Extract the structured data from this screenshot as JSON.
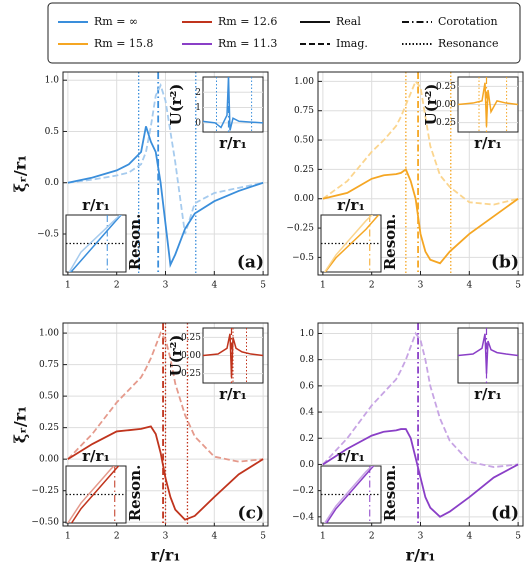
{
  "legend": [
    {
      "label": "Rm = ∞",
      "color": "#3a8edb",
      "dash": "solid"
    },
    {
      "label": "Rm = 15.8",
      "color": "#f5a623",
      "dash": "solid"
    },
    {
      "label": "Rm = 12.6",
      "color": "#c0341d",
      "dash": "solid"
    },
    {
      "label": "Rm = 11.3",
      "color": "#8a3fc7",
      "dash": "solid"
    },
    {
      "label": "Real",
      "color": "#111111",
      "dash": "solid"
    },
    {
      "label": "Imag.",
      "color": "#111111",
      "dash": "dashed"
    },
    {
      "label": "Corotation",
      "color": "#111111",
      "dash": "dashdot"
    },
    {
      "label": "Resonance",
      "color": "#111111",
      "dash": "dotted"
    }
  ],
  "chart_data": [
    {
      "type": "line",
      "panel_label": "(a)",
      "ylabel": "ξᵣ/r₁",
      "annotation": "Reson.",
      "x": [
        1,
        1.5,
        2,
        2.25,
        2.5,
        2.6,
        2.7,
        2.8,
        2.9,
        3.0,
        3.1,
        3.2,
        3.4,
        3.6,
        4,
        4.5,
        5
      ],
      "xlim": [
        0.9,
        5.1
      ],
      "xticks": [
        1,
        2,
        3,
        4,
        5
      ],
      "ylim": [
        -0.9,
        1.08
      ],
      "yticks": [
        {
          "value": -0.5,
          "label": "−0.5"
        },
        {
          "value": 0,
          "label": "0.0"
        },
        0.5,
        {
          "value": 1.0,
          "label": "1.0"
        }
      ],
      "grid": true,
      "corotation": 2.85,
      "resonances": [
        2.45,
        3.62
      ],
      "series": [
        {
          "color": "#3a8edb",
          "dash": "solid",
          "values": [
            0,
            0.05,
            0.12,
            0.18,
            0.3,
            0.55,
            0.4,
            0.3,
            0.0,
            -0.4,
            -0.8,
            -0.7,
            -0.45,
            -0.3,
            -0.18,
            -0.08,
            0
          ]
        },
        {
          "color": "#a6cbee",
          "dash": "dashed",
          "values": [
            0,
            0.03,
            0.07,
            0.1,
            0.18,
            0.3,
            0.55,
            0.85,
            0.95,
            0.8,
            0.5,
            0.2,
            -0.5,
            -0.2,
            -0.1,
            -0.05,
            0
          ]
        }
      ],
      "inset_potential": {
        "ylabel": "U(r²)",
        "xlabel": "r/r₁",
        "xlim": [
          2,
          4
        ],
        "ylim": [
          -0.6,
          3
        ],
        "yticks": [
          0,
          1,
          2
        ],
        "x": [
          2,
          2.4,
          2.6,
          2.8,
          2.85,
          2.9,
          3.0,
          3.2,
          3.6,
          4
        ],
        "values": [
          0.1,
          0,
          -0.3,
          0.5,
          3,
          -0.5,
          0.3,
          0.1,
          0.05,
          0
        ]
      },
      "inset_zoom": {
        "title": "r/r₁",
        "xlim": [
          2.3,
          3.1
        ],
        "ylim": [
          -1,
          1
        ],
        "hline": 0,
        "x": [
          2.3,
          2.5,
          2.7,
          2.9,
          3.1
        ],
        "series": [
          {
            "values": [
              -1.2,
              -0.6,
              0,
              0.6,
              1.2
            ]
          },
          {
            "values": [
              -1.2,
              -0.3,
              0.2,
              0.7,
              1.2
            ]
          }
        ]
      }
    },
    {
      "type": "line",
      "panel_label": "(b)",
      "annotation": "Reson.",
      "x": [
        1,
        1.5,
        2,
        2.25,
        2.5,
        2.6,
        2.7,
        2.8,
        2.9,
        3.0,
        3.1,
        3.2,
        3.4,
        3.6,
        4,
        4.5,
        5
      ],
      "xlim": [
        0.9,
        5.1
      ],
      "xticks": [
        1,
        2,
        3,
        4,
        5
      ],
      "ylim": [
        -0.65,
        1.08
      ],
      "yticks": [
        {
          "value": -0.5,
          "label": "−0.5"
        },
        {
          "value": -0.25,
          "label": "−0.25"
        },
        {
          "value": 0,
          "label": "0.00"
        },
        0.25,
        {
          "value": 0.5,
          "label": "0.50"
        },
        0.75,
        {
          "value": 1.0,
          "label": "1.00"
        }
      ],
      "grid": true,
      "corotation": 2.95,
      "resonances": [
        2.7,
        3.62
      ],
      "series": [
        {
          "color": "#f5a623",
          "dash": "solid",
          "values": [
            0,
            0.05,
            0.17,
            0.2,
            0.21,
            0.22,
            0.25,
            0.15,
            0.0,
            -0.3,
            -0.45,
            -0.52,
            -0.55,
            -0.45,
            -0.3,
            -0.15,
            0
          ]
        },
        {
          "color": "#fbd58e",
          "dash": "dashed",
          "values": [
            0,
            0.15,
            0.4,
            0.5,
            0.62,
            0.7,
            0.8,
            0.9,
            1.0,
            0.95,
            0.7,
            0.45,
            0.2,
            0.1,
            -0.03,
            -0.05,
            0
          ]
        }
      ],
      "inset_potential": {
        "ylabel": "U(r²)",
        "xlabel": "r/r₁",
        "xlim": [
          2,
          4
        ],
        "ylim": [
          -0.38,
          0.38
        ],
        "yticks": [
          {
            "value": -0.25,
            "label": "−0.25"
          },
          {
            "value": 0,
            "label": "0.00"
          },
          0.25
        ],
        "x": [
          2,
          2.5,
          2.8,
          2.9,
          2.95,
          3.0,
          3.1,
          3.3,
          3.6,
          4
        ],
        "values": [
          0,
          0.02,
          0.05,
          0.3,
          -0.3,
          0.2,
          -0.1,
          0.05,
          0.02,
          0
        ]
      },
      "inset_zoom": {
        "title": "r/r₁",
        "xlim": [
          2.3,
          3.1
        ],
        "ylim": [
          -1,
          1
        ],
        "hline": 0,
        "x": [
          2.3,
          2.5,
          2.7,
          2.9,
          3.1
        ],
        "series": [
          {
            "values": [
              -1.2,
              -0.5,
              0,
              0.5,
              1.1
            ]
          },
          {
            "values": [
              -1.2,
              -0.4,
              0.2,
              0.8,
              1.3
            ]
          }
        ]
      }
    },
    {
      "type": "line",
      "panel_label": "(c)",
      "ylabel": "ξᵣ/r₁",
      "xlabel": "r/r₁",
      "annotation": "Reson.",
      "x": [
        1,
        1.5,
        2,
        2.25,
        2.5,
        2.6,
        2.7,
        2.8,
        2.9,
        3.0,
        3.1,
        3.2,
        3.4,
        3.6,
        4,
        4.5,
        5
      ],
      "xlim": [
        0.9,
        5.1
      ],
      "xticks": [
        1,
        2,
        3,
        4,
        5
      ],
      "ylim": [
        -0.53,
        1.08
      ],
      "yticks": [
        {
          "value": -0.5,
          "label": "−0.50"
        },
        {
          "value": -0.25,
          "label": "−0.25"
        },
        {
          "value": 0,
          "label": "0.00"
        },
        0.25,
        {
          "value": 0.5,
          "label": "0.50"
        },
        0.75,
        {
          "value": 1.0,
          "label": "1.00"
        }
      ],
      "grid": true,
      "corotation": 2.95,
      "resonances": [
        3.0,
        3.45
      ],
      "series": [
        {
          "color": "#c0341d",
          "dash": "solid",
          "values": [
            0,
            0.12,
            0.22,
            0.23,
            0.24,
            0.25,
            0.26,
            0.2,
            0.05,
            -0.15,
            -0.3,
            -0.4,
            -0.48,
            -0.45,
            -0.3,
            -0.12,
            0
          ]
        },
        {
          "color": "#e59a8c",
          "dash": "dashed",
          "values": [
            0,
            0.2,
            0.45,
            0.55,
            0.65,
            0.72,
            0.8,
            0.9,
            1.0,
            0.95,
            0.8,
            0.6,
            0.35,
            0.18,
            0.02,
            -0.02,
            0
          ]
        }
      ],
      "inset_potential": {
        "ylabel": "U(r²)",
        "xlabel": "r/r₁",
        "xlim": [
          2,
          4
        ],
        "ylim": [
          -0.38,
          0.38
        ],
        "yticks": [
          {
            "value": -0.25,
            "label": "−0.25"
          },
          {
            "value": 0,
            "label": "0.00"
          },
          0.25
        ],
        "x": [
          2,
          2.5,
          2.8,
          2.9,
          2.95,
          3.0,
          3.1,
          3.3,
          3.6,
          4
        ],
        "values": [
          0,
          0.02,
          0.1,
          0.3,
          -0.3,
          0.25,
          0.1,
          0.05,
          0.02,
          0
        ]
      },
      "inset_zoom": {
        "title": "r/r₁",
        "xlim": [
          2.3,
          3.1
        ],
        "ylim": [
          -1,
          1
        ],
        "hline": 0,
        "x": [
          2.3,
          2.5,
          2.7,
          2.9,
          3.1
        ],
        "series": [
          {
            "values": [
              -1.3,
              -0.5,
              0.1,
              0.7,
              1.3
            ]
          },
          {
            "values": [
              -1.1,
              -0.3,
              0.3,
              0.9,
              1.4
            ]
          }
        ]
      }
    },
    {
      "type": "line",
      "panel_label": "(d)",
      "xlabel": "r/r₁",
      "annotation": "Reson.",
      "x": [
        1,
        1.5,
        2,
        2.25,
        2.5,
        2.6,
        2.7,
        2.8,
        2.9,
        3.0,
        3.1,
        3.2,
        3.4,
        3.6,
        4,
        4.5,
        5
      ],
      "xlim": [
        0.9,
        5.1
      ],
      "xticks": [
        1,
        2,
        3,
        4,
        5
      ],
      "ylim": [
        -0.47,
        1.08
      ],
      "yticks": [
        {
          "value": -0.4,
          "label": "−0.4"
        },
        {
          "value": -0.2,
          "label": "−0.2"
        },
        {
          "value": 0,
          "label": "0.0"
        },
        0.2,
        0.4,
        0.6,
        0.8,
        {
          "value": 1.0,
          "label": "1.0"
        }
      ],
      "grid": true,
      "corotation": 2.95,
      "resonances": [],
      "series": [
        {
          "color": "#8a3fc7",
          "dash": "solid",
          "values": [
            0,
            0.12,
            0.22,
            0.25,
            0.26,
            0.27,
            0.27,
            0.2,
            0.05,
            -0.1,
            -0.25,
            -0.33,
            -0.4,
            -0.36,
            -0.25,
            -0.1,
            0
          ]
        },
        {
          "color": "#c7a4e4",
          "dash": "dashed",
          "values": [
            0,
            0.2,
            0.45,
            0.55,
            0.65,
            0.72,
            0.8,
            0.9,
            1.0,
            0.95,
            0.8,
            0.6,
            0.35,
            0.18,
            0.02,
            -0.02,
            0
          ]
        }
      ],
      "inset_potential": {
        "xlabel": "r/r₁",
        "xlim": [
          2,
          4
        ],
        "ylim": [
          -0.38,
          0.38
        ],
        "x": [
          2,
          2.5,
          2.8,
          2.9,
          2.95,
          3.0,
          3.1,
          3.3,
          3.6,
          4
        ],
        "values": [
          0,
          0.02,
          0.1,
          0.3,
          -0.25,
          0.2,
          0.08,
          0.04,
          0.02,
          0
        ]
      },
      "inset_zoom": {
        "title": "r/r₁",
        "xlim": [
          2.3,
          3.1
        ],
        "ylim": [
          -1,
          1
        ],
        "hline": 0,
        "x": [
          2.3,
          2.5,
          2.7,
          2.9,
          3.1
        ],
        "series": [
          {
            "values": [
              -1.3,
              -0.5,
              0.1,
              0.7,
              1.3
            ]
          },
          {
            "values": [
              -1.2,
              -0.4,
              0.2,
              0.8,
              1.3
            ]
          }
        ]
      }
    }
  ]
}
